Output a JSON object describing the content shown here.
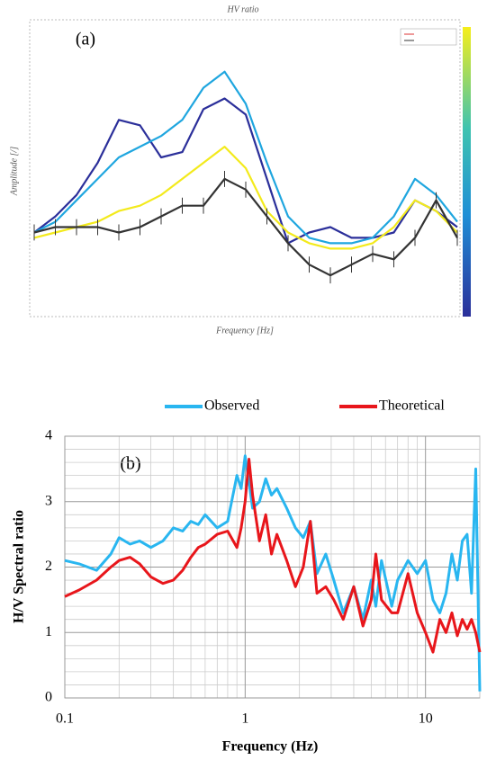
{
  "chart_data": [
    {
      "type": "line",
      "label": "(a)",
      "title": "HV ratio",
      "x_label": "Frequency [Hz]",
      "y_label": "Amplitude [/]",
      "x": [
        0,
        1,
        2,
        3,
        4,
        5,
        6,
        7,
        8,
        9,
        10,
        11,
        12,
        13,
        14,
        15,
        16,
        17,
        18,
        19,
        20
      ],
      "xlim": [
        0,
        20
      ],
      "ylim": [
        0,
        5
      ],
      "series": [
        {
          "color": "#2b2f9a",
          "values": [
            1.2,
            1.5,
            1.9,
            2.5,
            3.3,
            3.2,
            2.6,
            2.7,
            3.5,
            3.7,
            3.4,
            2.2,
            1.0,
            1.2,
            1.3,
            1.1,
            1.1,
            1.2,
            1.8,
            1.6,
            1.3
          ]
        },
        {
          "color": "#1fa6df",
          "values": [
            1.2,
            1.4,
            1.8,
            2.2,
            2.6,
            2.8,
            3.0,
            3.3,
            3.9,
            4.2,
            3.6,
            2.5,
            1.5,
            1.1,
            1.0,
            1.0,
            1.1,
            1.5,
            2.2,
            1.9,
            1.4
          ]
        },
        {
          "color": "#f3ea1c",
          "values": [
            1.1,
            1.2,
            1.3,
            1.4,
            1.6,
            1.7,
            1.9,
            2.2,
            2.5,
            2.8,
            2.4,
            1.6,
            1.2,
            1.0,
            0.9,
            0.9,
            1.0,
            1.3,
            1.8,
            1.6,
            1.2
          ]
        },
        {
          "color": "#333333",
          "values": [
            1.2,
            1.3,
            1.3,
            1.3,
            1.2,
            1.3,
            1.5,
            1.7,
            1.7,
            2.2,
            2.0,
            1.5,
            1.0,
            0.6,
            0.4,
            0.6,
            0.8,
            0.7,
            1.1,
            1.8,
            1.1
          ],
          "errors": [
            0.15,
            0.15,
            0.15,
            0.15,
            0.15,
            0.15,
            0.15,
            0.15,
            0.15,
            0.15,
            0.15,
            0.15,
            0.15,
            0.15,
            0.15,
            0.15,
            0.15,
            0.15,
            0.15,
            0.15,
            0.15
          ]
        }
      ]
    },
    {
      "type": "line",
      "label": "(b)",
      "x_label": "Frequency (Hz)",
      "y_label": "H/V Spectral ratio",
      "log_x": true,
      "grid": true,
      "x": [
        0.1,
        0.12,
        0.15,
        0.18,
        0.2,
        0.23,
        0.26,
        0.3,
        0.35,
        0.4,
        0.45,
        0.5,
        0.55,
        0.6,
        0.7,
        0.8,
        0.9,
        0.95,
        1,
        1.05,
        1.1,
        1.2,
        1.3,
        1.4,
        1.5,
        1.7,
        1.9,
        2.1,
        2.3,
        2.5,
        2.8,
        3.1,
        3.5,
        4,
        4.5,
        5,
        5.3,
        5.7,
        6.5,
        7,
        8,
        9,
        10,
        11,
        12,
        13,
        14,
        15,
        16,
        17,
        18,
        19,
        20
      ],
      "xlim": [
        0.1,
        20
      ],
      "ylim": [
        0,
        4
      ],
      "xticks": [
        0.1,
        1,
        10
      ],
      "yticks": [
        0,
        1,
        2,
        3,
        4
      ],
      "xminor": [
        0.2,
        0.3,
        0.4,
        0.5,
        0.6,
        0.7,
        0.8,
        0.9,
        2,
        3,
        4,
        5,
        6,
        7,
        8,
        9,
        20
      ],
      "yminor": [
        0.2,
        0.4,
        0.6,
        0.8,
        1.2,
        1.4,
        1.6,
        1.8,
        2.2,
        2.4,
        2.6,
        2.8,
        3.2,
        3.4,
        3.6,
        3.8
      ],
      "series": [
        {
          "name": "Observed",
          "color": "#29b6f0",
          "values": [
            2.1,
            2.05,
            1.95,
            2.2,
            2.45,
            2.35,
            2.4,
            2.3,
            2.4,
            2.6,
            2.55,
            2.7,
            2.65,
            2.8,
            2.6,
            2.7,
            3.4,
            3.2,
            3.7,
            3.3,
            2.9,
            3.0,
            3.35,
            3.1,
            3.2,
            2.9,
            2.6,
            2.45,
            2.7,
            1.9,
            2.2,
            1.8,
            1.3,
            1.7,
            1.2,
            1.8,
            1.4,
            2.1,
            1.4,
            1.8,
            2.1,
            1.9,
            2.1,
            1.5,
            1.3,
            1.6,
            2.2,
            1.8,
            2.4,
            2.5,
            1.6,
            3.5,
            0.1
          ]
        },
        {
          "name": "Theoretical",
          "color": "#e8161b",
          "values": [
            1.55,
            1.65,
            1.8,
            2.0,
            2.1,
            2.15,
            2.05,
            1.85,
            1.75,
            1.8,
            1.95,
            2.15,
            2.3,
            2.35,
            2.5,
            2.55,
            2.3,
            2.6,
            3.0,
            3.65,
            3.1,
            2.4,
            2.8,
            2.2,
            2.5,
            2.1,
            1.7,
            2.0,
            2.7,
            1.6,
            1.7,
            1.5,
            1.2,
            1.7,
            1.1,
            1.5,
            2.2,
            1.5,
            1.3,
            1.3,
            1.9,
            1.3,
            1.0,
            0.7,
            1.2,
            1.0,
            1.3,
            0.95,
            1.2,
            1.05,
            1.2,
            1.0,
            0.7
          ]
        }
      ]
    }
  ]
}
